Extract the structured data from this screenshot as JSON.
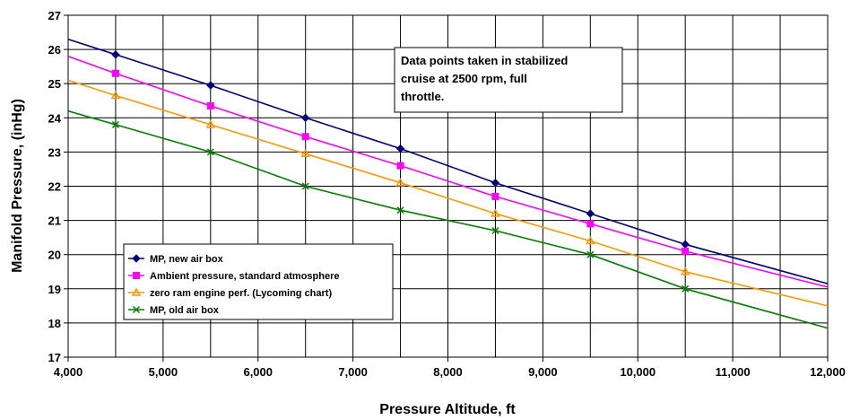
{
  "chart_data": {
    "type": "line",
    "title": "",
    "xlabel": "Pressure Altitude, ft",
    "ylabel": "Manifold Pressure, (inHg)",
    "xlim": [
      4000,
      12000
    ],
    "ylim": [
      17,
      27
    ],
    "x_ticks": [
      "4,000",
      "5,000",
      "6,000",
      "7,000",
      "8,000",
      "9,000",
      "10,000",
      "11,000",
      "12,000"
    ],
    "y_ticks": [
      "17",
      "18",
      "19",
      "20",
      "21",
      "22",
      "23",
      "24",
      "25",
      "26",
      "27"
    ],
    "grid": true,
    "legend_position": "lower-left",
    "annotation": [
      "Data points taken in stabilized",
      "cruise at 2500 rpm, full",
      "throttle."
    ],
    "series": [
      {
        "name": "MP, new air box",
        "color": "#000080",
        "marker": "diamond",
        "x": [
          4000,
          4500,
          5500,
          6500,
          7500,
          8500,
          9500,
          10500,
          12000
        ],
        "y": [
          26.3,
          25.85,
          24.95,
          24.0,
          23.1,
          22.1,
          21.2,
          20.3,
          19.15
        ]
      },
      {
        "name": "Ambient pressure, standard atmosphere",
        "color": "#ff00ff",
        "marker": "square",
        "x": [
          4000,
          4500,
          5500,
          6500,
          7500,
          8500,
          9500,
          10500,
          12000
        ],
        "y": [
          25.8,
          25.3,
          24.35,
          23.45,
          22.6,
          21.7,
          20.9,
          20.1,
          19.05
        ]
      },
      {
        "name": "zero ram engine perf. (Lycoming chart)",
        "color": "#ff9900",
        "marker": "triangle",
        "x": [
          4000,
          4500,
          5500,
          6500,
          7500,
          8500,
          9500,
          10500,
          12000
        ],
        "y": [
          25.1,
          24.65,
          23.8,
          22.95,
          22.1,
          21.2,
          20.4,
          19.5,
          18.5
        ]
      },
      {
        "name": "MP, old air box",
        "color": "#008000",
        "marker": "x",
        "x": [
          4000,
          4500,
          5500,
          6500,
          7500,
          8500,
          9500,
          10500,
          12000
        ],
        "y": [
          24.2,
          23.8,
          23.0,
          22.0,
          21.3,
          20.7,
          20.0,
          19.0,
          17.85
        ]
      }
    ]
  }
}
